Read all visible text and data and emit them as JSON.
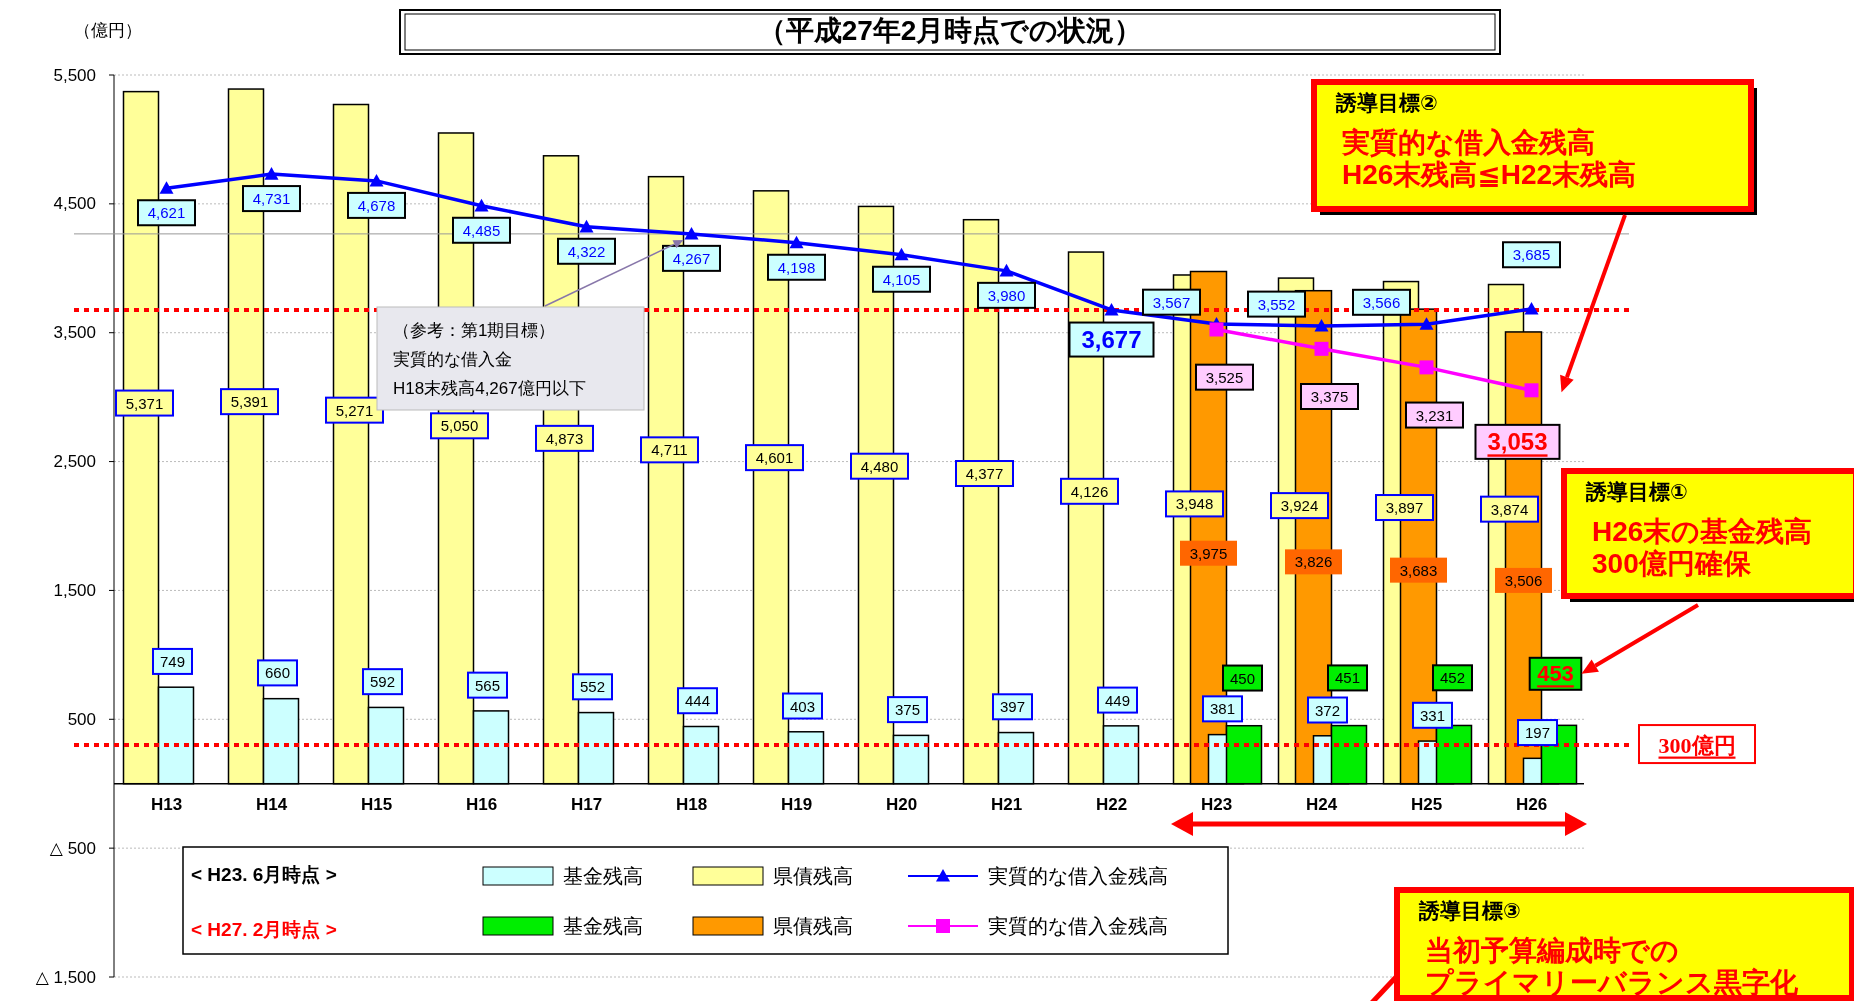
{
  "chart_data": {
    "type": "bar",
    "title": "（平成27年2月時点での状況）",
    "ylabel": "（億円）",
    "categories": [
      "H13",
      "H14",
      "H15",
      "H16",
      "H17",
      "H18",
      "H19",
      "H20",
      "H21",
      "H22",
      "H23",
      "H24",
      "H25",
      "H26"
    ],
    "series": [
      {
        "name": "基金残高",
        "color": "#ccffff",
        "values": [
          749,
          660,
          592,
          565,
          552,
          444,
          403,
          375,
          397,
          449,
          381,
          372,
          331,
          197
        ],
        "value_labels": [
          "749",
          "660",
          "592",
          "565",
          "552",
          "444",
          "403",
          "375",
          "397",
          "449",
          "381",
          "372",
          "331",
          "197"
        ]
      },
      {
        "name": "県債残高",
        "color": "#ffff99",
        "values": [
          5371,
          5391,
          5271,
          5050,
          4873,
          4711,
          4601,
          4480,
          4377,
          4126,
          3948,
          3924,
          3897,
          3874
        ],
        "value_labels": [
          "5,371",
          "5,391",
          "5,271",
          "5,050",
          "4,873",
          "4,711",
          "4,601",
          "4,480",
          "4,377",
          "4,126",
          "3,948",
          "3,924",
          "3,897",
          "3,874"
        ]
      },
      {
        "name": "実質的な借入金残高",
        "type": "line",
        "color": "#0000ff",
        "marker": "triangle",
        "values": [
          4621,
          4731,
          4678,
          4485,
          4322,
          4267,
          4198,
          4105,
          3980,
          3677,
          3567,
          3552,
          3566,
          3685
        ],
        "value_labels": [
          "4,621",
          "4,731",
          "4,678",
          "4,485",
          "4,322",
          "4,267",
          "4,198",
          "4,105",
          "3,980",
          "3,677",
          "3,567",
          "3,552",
          "3,566",
          "3,685"
        ]
      },
      {
        "name": "基金残高",
        "color": "#00ee00",
        "values": [
          null,
          null,
          null,
          null,
          null,
          null,
          null,
          null,
          null,
          null,
          450,
          451,
          452,
          453
        ],
        "value_labels": [
          null,
          null,
          null,
          null,
          null,
          null,
          null,
          null,
          null,
          null,
          "450",
          "451",
          "452",
          "453"
        ]
      },
      {
        "name": "県債残高",
        "color": "#ff9900",
        "values": [
          null,
          null,
          null,
          null,
          null,
          null,
          null,
          null,
          null,
          null,
          3975,
          3826,
          3683,
          3506
        ],
        "value_labels": [
          null,
          null,
          null,
          null,
          null,
          null,
          null,
          null,
          null,
          null,
          "3,975",
          "3,826",
          "3,683",
          "3,506"
        ]
      },
      {
        "name": "実質的な借入金残高",
        "type": "line",
        "color": "#ff00ff",
        "marker": "square",
        "values": [
          null,
          null,
          null,
          null,
          null,
          null,
          null,
          null,
          null,
          null,
          3525,
          3375,
          3231,
          3053
        ],
        "value_labels": [
          null,
          null,
          null,
          null,
          null,
          null,
          null,
          null,
          null,
          null,
          "3,525",
          "3,375",
          "3,231",
          "3,053"
        ]
      }
    ],
    "ylim": [
      -1500,
      5500
    ],
    "yticks": [
      {
        "value": -1500,
        "label": "△ 1,500"
      },
      {
        "value": -500,
        "label": "△ 500"
      },
      500,
      {
        "value": 1500,
        "label": "1,500"
      },
      {
        "value": 2500,
        "label": "2,500"
      },
      {
        "value": 3500,
        "label": "3,500"
      },
      {
        "value": 4500,
        "label": "4,500"
      },
      {
        "value": 5500,
        "label": "5,500"
      }
    ],
    "grid": "y",
    "legend": "bottom",
    "ref_lines": [
      {
        "axis": "y",
        "value": 300,
        "label": "300億円",
        "color": "#ff0000",
        "line_style": "dotted"
      },
      {
        "axis": "y",
        "value": 3677,
        "color": "#ff0000",
        "line_style": "dotted"
      },
      {
        "axis": "y",
        "value": 4267,
        "color": "#999999",
        "line_style": "solid"
      }
    ],
    "annotations": [
      "< H23. 6月時点 >",
      "< H27. 2月時点 >",
      "（参考：第1期目標）",
      "実質的な借入金",
      "H18末残高4,267億円以下",
      "誘導目標②",
      "実質的な借入金残高",
      "H26末残高≦H22末残高",
      "誘導目標①",
      "H26末の基金残高",
      "300億円確保",
      "誘導目標③",
      "当初予算編成時での",
      "プライマリーバランス黒字化"
    ]
  }
}
